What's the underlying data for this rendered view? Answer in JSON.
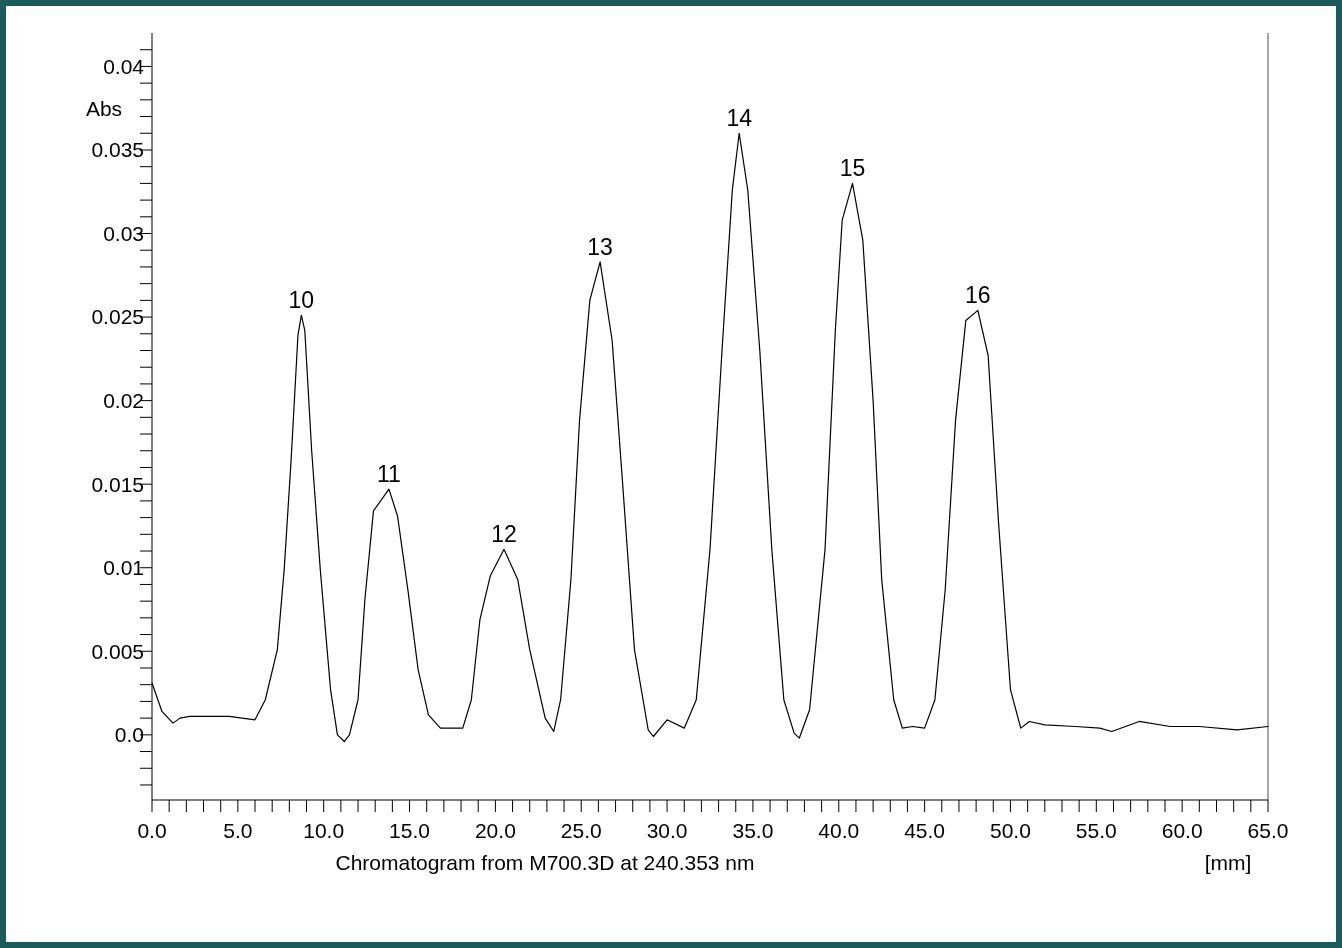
{
  "chart_data": {
    "type": "line",
    "xlabel": "Chromatogram from M700.3D at 240.353 nm",
    "ylabel": "Abs",
    "x": [
      0,
      0.58,
      1.22,
      1.63,
      2.2,
      4.5,
      6.0,
      6.6,
      7.3,
      7.7,
      8.1,
      8.5,
      8.7,
      8.9,
      9.3,
      9.8,
      10.4,
      10.8,
      11.2,
      11.5,
      12.0,
      12.4,
      12.9,
      13.8,
      14.3,
      14.9,
      15.5,
      16.1,
      16.8,
      18.1,
      18.6,
      19.1,
      19.7,
      20.5,
      21.3,
      22.0,
      22.9,
      23.4,
      23.8,
      24.4,
      24.9,
      25.5,
      26.1,
      26.8,
      27.4,
      28.1,
      28.9,
      29.2,
      30.0,
      31.0,
      31.7,
      32.5,
      33.2,
      33.8,
      34.2,
      34.7,
      35.4,
      36.1,
      36.8,
      37.4,
      37.7,
      38.3,
      39.2,
      39.8,
      40.2,
      40.8,
      41.4,
      42.0,
      42.5,
      43.2,
      43.7,
      44.3,
      45.0,
      45.6,
      46.2,
      46.8,
      47.4,
      48.1,
      48.7,
      49.3,
      50.0,
      50.6,
      51.1,
      52.0,
      53.8,
      55.2,
      55.9,
      57.5,
      59.3,
      61.0,
      63.2,
      65.0
    ],
    "series": [
      {
        "color": "#000000",
        "values": [
          0.0031,
          0.0014,
          0.0007,
          0.001,
          0.0011,
          0.0011,
          0.0009,
          0.0021,
          0.0051,
          0.0099,
          0.0164,
          0.0239,
          0.0251,
          0.0242,
          0.017,
          0.0099,
          0.0027,
          0.0,
          -0.0004,
          0.0,
          0.0021,
          0.0081,
          0.0134,
          0.0147,
          0.0131,
          0.0087,
          0.0039,
          0.0012,
          0.0004,
          0.0004,
          0.0021,
          0.0069,
          0.0095,
          0.0111,
          0.0093,
          0.0051,
          0.001,
          0.0002,
          0.0021,
          0.0093,
          0.0188,
          0.026,
          0.0283,
          0.0236,
          0.0152,
          0.0051,
          0.0003,
          -0.0001,
          0.0009,
          0.0004,
          0.0021,
          0.0111,
          0.023,
          0.0326,
          0.036,
          0.0326,
          0.023,
          0.0111,
          0.0021,
          0.0001,
          -0.0002,
          0.0015,
          0.0111,
          0.0242,
          0.0308,
          0.033,
          0.0296,
          0.02,
          0.0093,
          0.0021,
          0.0004,
          0.0005,
          0.0004,
          0.0021,
          0.0087,
          0.0188,
          0.0248,
          0.0254,
          0.0227,
          0.0128,
          0.0027,
          0.0004,
          0.0008,
          0.0006,
          0.0005,
          0.0004,
          0.0002,
          0.0008,
          0.0005,
          0.0005,
          0.0003,
          0.0005
        ]
      }
    ],
    "xlim": [
      0,
      65
    ],
    "ylim": [
      -0.0039,
      0.042
    ],
    "xticks": [
      {
        "value": 0,
        "label": "0.0"
      },
      {
        "value": 1,
        "label": null
      },
      {
        "value": 2,
        "label": null
      },
      {
        "value": 3,
        "label": null
      },
      {
        "value": 4,
        "label": null
      },
      {
        "value": 5,
        "label": "5.0"
      },
      {
        "value": 6,
        "label": null
      },
      {
        "value": 7,
        "label": null
      },
      {
        "value": 8,
        "label": null
      },
      {
        "value": 9,
        "label": null
      },
      {
        "value": 10,
        "label": "10.0"
      },
      {
        "value": 11,
        "label": null
      },
      {
        "value": 12,
        "label": null
      },
      {
        "value": 13,
        "label": null
      },
      {
        "value": 14,
        "label": null
      },
      {
        "value": 15,
        "label": "15.0"
      },
      {
        "value": 16,
        "label": null
      },
      {
        "value": 17,
        "label": null
      },
      {
        "value": 18,
        "label": null
      },
      {
        "value": 19,
        "label": null
      },
      {
        "value": 20,
        "label": "20.0"
      },
      {
        "value": 21,
        "label": null
      },
      {
        "value": 22,
        "label": null
      },
      {
        "value": 23,
        "label": null
      },
      {
        "value": 24,
        "label": null
      },
      {
        "value": 25,
        "label": "25.0"
      },
      {
        "value": 26,
        "label": null
      },
      {
        "value": 27,
        "label": null
      },
      {
        "value": 28,
        "label": null
      },
      {
        "value": 29,
        "label": null
      },
      {
        "value": 30,
        "label": "30.0"
      },
      {
        "value": 31,
        "label": null
      },
      {
        "value": 32,
        "label": null
      },
      {
        "value": 33,
        "label": null
      },
      {
        "value": 34,
        "label": null
      },
      {
        "value": 35,
        "label": "35.0"
      },
      {
        "value": 36,
        "label": null
      },
      {
        "value": 37,
        "label": null
      },
      {
        "value": 38,
        "label": null
      },
      {
        "value": 39,
        "label": null
      },
      {
        "value": 40,
        "label": "40.0"
      },
      {
        "value": 41,
        "label": null
      },
      {
        "value": 42,
        "label": null
      },
      {
        "value": 43,
        "label": null
      },
      {
        "value": 44,
        "label": null
      },
      {
        "value": 45,
        "label": "45.0"
      },
      {
        "value": 46,
        "label": null
      },
      {
        "value": 47,
        "label": null
      },
      {
        "value": 48,
        "label": null
      },
      {
        "value": 49,
        "label": null
      },
      {
        "value": 50,
        "label": "50.0"
      },
      {
        "value": 51,
        "label": null
      },
      {
        "value": 52,
        "label": null
      },
      {
        "value": 53,
        "label": null
      },
      {
        "value": 54,
        "label": null
      },
      {
        "value": 55,
        "label": "55.0"
      },
      {
        "value": 56,
        "label": null
      },
      {
        "value": 57,
        "label": null
      },
      {
        "value": 58,
        "label": null
      },
      {
        "value": 59,
        "label": null
      },
      {
        "value": 60,
        "label": "60.0"
      },
      {
        "value": 61,
        "label": null
      },
      {
        "value": 62,
        "label": null
      },
      {
        "value": 63,
        "label": null
      },
      {
        "value": 64,
        "label": null
      },
      {
        "value": 65,
        "label": "65.0"
      }
    ],
    "yticks": [
      {
        "value": -0.003,
        "label": null
      },
      {
        "value": -0.002,
        "label": null
      },
      {
        "value": -0.001,
        "label": null
      },
      {
        "value": 0,
        "label": "0.0"
      },
      {
        "value": 0.001,
        "label": null
      },
      {
        "value": 0.002,
        "label": null
      },
      {
        "value": 0.003,
        "label": null
      },
      {
        "value": 0.004,
        "label": null
      },
      0.005,
      {
        "value": 0.006,
        "label": null
      },
      {
        "value": 0.007,
        "label": null
      },
      {
        "value": 0.008,
        "label": null
      },
      {
        "value": 0.009,
        "label": null
      },
      0.01,
      {
        "value": 0.011,
        "label": null
      },
      {
        "value": 0.012,
        "label": null
      },
      {
        "value": 0.013,
        "label": null
      },
      {
        "value": 0.014,
        "label": null
      },
      0.015,
      {
        "value": 0.016,
        "label": null
      },
      {
        "value": 0.017,
        "label": null
      },
      {
        "value": 0.018,
        "label": null
      },
      {
        "value": 0.019,
        "label": null
      },
      0.02,
      {
        "value": 0.021,
        "label": null
      },
      {
        "value": 0.022,
        "label": null
      },
      {
        "value": 0.023,
        "label": null
      },
      {
        "value": 0.024,
        "label": null
      },
      0.025,
      {
        "value": 0.026,
        "label": null
      },
      {
        "value": 0.027,
        "label": null
      },
      {
        "value": 0.028,
        "label": null
      },
      {
        "value": 0.029,
        "label": null
      },
      0.03,
      {
        "value": 0.031,
        "label": null
      },
      {
        "value": 0.032,
        "label": null
      },
      {
        "value": 0.033,
        "label": null
      },
      {
        "value": 0.034,
        "label": null
      },
      0.035,
      {
        "value": 0.036,
        "label": null
      },
      {
        "value": 0.037,
        "label": null
      },
      {
        "value": 0.038,
        "label": null
      },
      {
        "value": 0.039,
        "label": null
      },
      0.04,
      {
        "value": 0.041,
        "label": null
      }
    ],
    "annotations": [
      {
        "text": "10",
        "x": 8.7,
        "y": 0.0251
      },
      {
        "text": "11",
        "x": 13.8,
        "y": 0.0147
      },
      {
        "text": "12",
        "x": 20.5,
        "y": 0.0111
      },
      {
        "text": "13",
        "x": 26.1,
        "y": 0.0283
      },
      {
        "text": "14",
        "x": 34.2,
        "y": 0.036
      },
      {
        "text": "15",
        "x": 40.8,
        "y": 0.033
      },
      {
        "text": "16",
        "x": 48.1,
        "y": 0.0254
      },
      "[mm]"
    ]
  }
}
